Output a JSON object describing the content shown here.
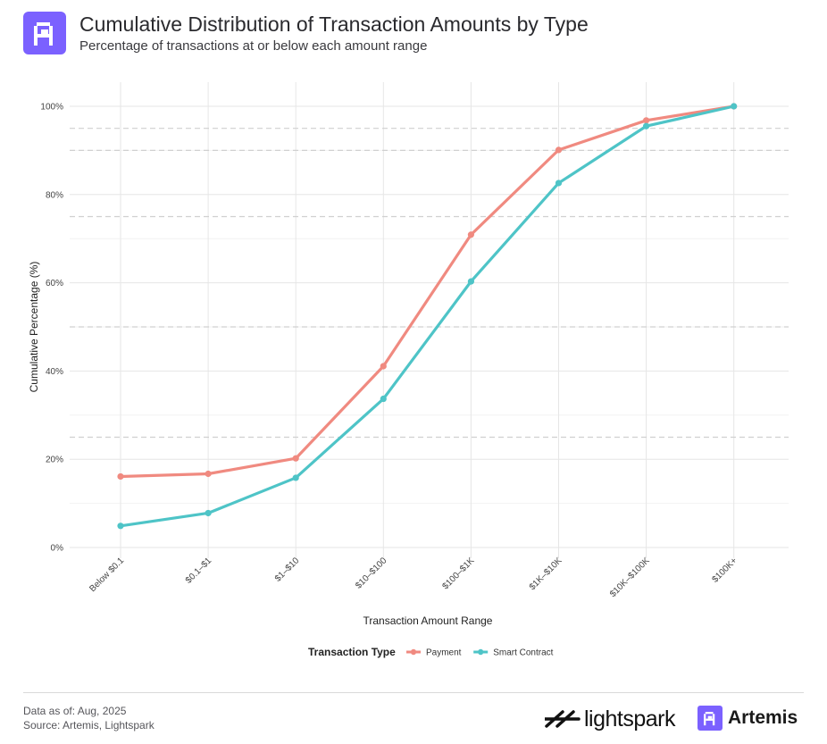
{
  "header": {
    "title": "Cumulative Distribution of Transaction Amounts by Type",
    "subtitle": "Percentage of transactions at or below each amount range"
  },
  "chart_data": {
    "type": "line",
    "title": "Cumulative Distribution of Transaction Amounts by Type",
    "subtitle": "Percentage of transactions at or below each amount range",
    "xlabel": "Transaction Amount Range",
    "ylabel": "Cumulative Percentage (%)",
    "categories": [
      "Below $0.1",
      "$0.1–$1",
      "$1–$10",
      "$10–$100",
      "$100–$1K",
      "$1K–$10K",
      "$10K–$100K",
      "$100K+"
    ],
    "series": [
      {
        "name": "Payment",
        "color": "#f08a80",
        "values": [
          16.1,
          16.7,
          20.2,
          41.1,
          70.9,
          90.1,
          96.8,
          100
        ]
      },
      {
        "name": "Smart Contract",
        "color": "#4ec4c7",
        "values": [
          4.9,
          7.8,
          15.8,
          33.7,
          60.3,
          82.6,
          95.5,
          100
        ]
      }
    ],
    "ylim": [
      0,
      100
    ],
    "yticks": [
      0,
      20,
      40,
      60,
      80,
      100
    ],
    "ytick_labels": [
      "0%",
      "20%",
      "40%",
      "60%",
      "80%",
      "100%"
    ],
    "dashed_reference_lines": [
      25,
      50,
      75,
      90,
      95
    ],
    "legend": {
      "title": "Transaction Type",
      "position": "bottom"
    },
    "grid": true
  },
  "footer": {
    "data_as_of": "Data as of: Aug, 2025",
    "source": "Source: Artemis, Lightspark"
  },
  "brands": {
    "lightspark": "lightspark",
    "artemis": "Artemis"
  },
  "colors": {
    "accent": "#7b61ff",
    "payment": "#f08a80",
    "smart_contract": "#4ec4c7"
  }
}
